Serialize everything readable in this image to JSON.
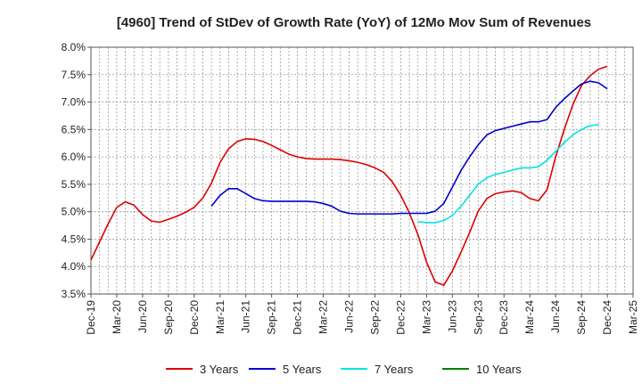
{
  "chart_data": {
    "type": "line",
    "title": "[4960]  Trend of StDev of Growth Rate (YoY) of 12Mo Mov Sum of Revenues",
    "xlabel": "",
    "ylabel": "",
    "ylim": [
      3.5,
      8.0
    ],
    "yticks": [
      3.5,
      4.0,
      4.5,
      5.0,
      5.5,
      6.0,
      6.5,
      7.0,
      7.5,
      8.0
    ],
    "ytick_labels": [
      "3.5%",
      "4.0%",
      "4.5%",
      "5.0%",
      "5.5%",
      "6.0%",
      "6.5%",
      "7.0%",
      "7.5%",
      "8.0%"
    ],
    "xtick_labels": [
      "Dec-19",
      "Mar-20",
      "Jun-20",
      "Sep-20",
      "Dec-20",
      "Mar-21",
      "Jun-21",
      "Sep-21",
      "Dec-21",
      "Mar-22",
      "Jun-22",
      "Sep-22",
      "Dec-22",
      "Mar-23",
      "Jun-23",
      "Sep-23",
      "Dec-23",
      "Mar-24",
      "Jun-24",
      "Sep-24",
      "Dec-24",
      "Mar-25"
    ],
    "x_count_months": 63,
    "grid": true,
    "legend_position": "bottom",
    "series": [
      {
        "name": "3 Years",
        "color": "#dd0000",
        "start_index": 0,
        "values": [
          4.12,
          4.45,
          4.78,
          5.08,
          5.18,
          5.12,
          4.95,
          4.83,
          4.81,
          4.86,
          4.92,
          4.99,
          5.08,
          5.25,
          5.52,
          5.9,
          6.15,
          6.28,
          6.33,
          6.32,
          6.28,
          6.21,
          6.13,
          6.05,
          6.0,
          5.97,
          5.96,
          5.96,
          5.96,
          5.95,
          5.93,
          5.9,
          5.86,
          5.8,
          5.72,
          5.55,
          5.3,
          4.98,
          4.58,
          4.08,
          3.72,
          3.66,
          3.92,
          4.26,
          4.62,
          5.01,
          5.24,
          5.33,
          5.36,
          5.38,
          5.35,
          5.24,
          5.2,
          5.4,
          6.0,
          6.5,
          6.95,
          7.3,
          7.48,
          7.6,
          7.65
        ]
      },
      {
        "name": "5 Years",
        "color": "#0000cc",
        "start_index": 14,
        "values": [
          5.1,
          5.3,
          5.42,
          5.42,
          5.33,
          5.24,
          5.2,
          5.19,
          5.19,
          5.19,
          5.19,
          5.19,
          5.18,
          5.15,
          5.1,
          5.01,
          4.97,
          4.96,
          4.96,
          4.96,
          4.96,
          4.96,
          4.97,
          4.97,
          4.97,
          4.97,
          5.01,
          5.15,
          5.45,
          5.75,
          6.0,
          6.22,
          6.4,
          6.48,
          6.52,
          6.56,
          6.6,
          6.64,
          6.64,
          6.68,
          6.9,
          7.06,
          7.2,
          7.33,
          7.38,
          7.35,
          7.24
        ]
      },
      {
        "name": "7 Years",
        "color": "#00e5e5",
        "start_index": 38,
        "values": [
          4.82,
          4.8,
          4.8,
          4.84,
          4.93,
          5.1,
          5.3,
          5.5,
          5.62,
          5.68,
          5.72,
          5.76,
          5.8,
          5.8,
          5.82,
          5.94,
          6.1,
          6.26,
          6.4,
          6.5,
          6.57,
          6.59
        ]
      },
      {
        "name": "10 Years",
        "color": "#008000",
        "start_index": 0,
        "values": []
      }
    ]
  }
}
